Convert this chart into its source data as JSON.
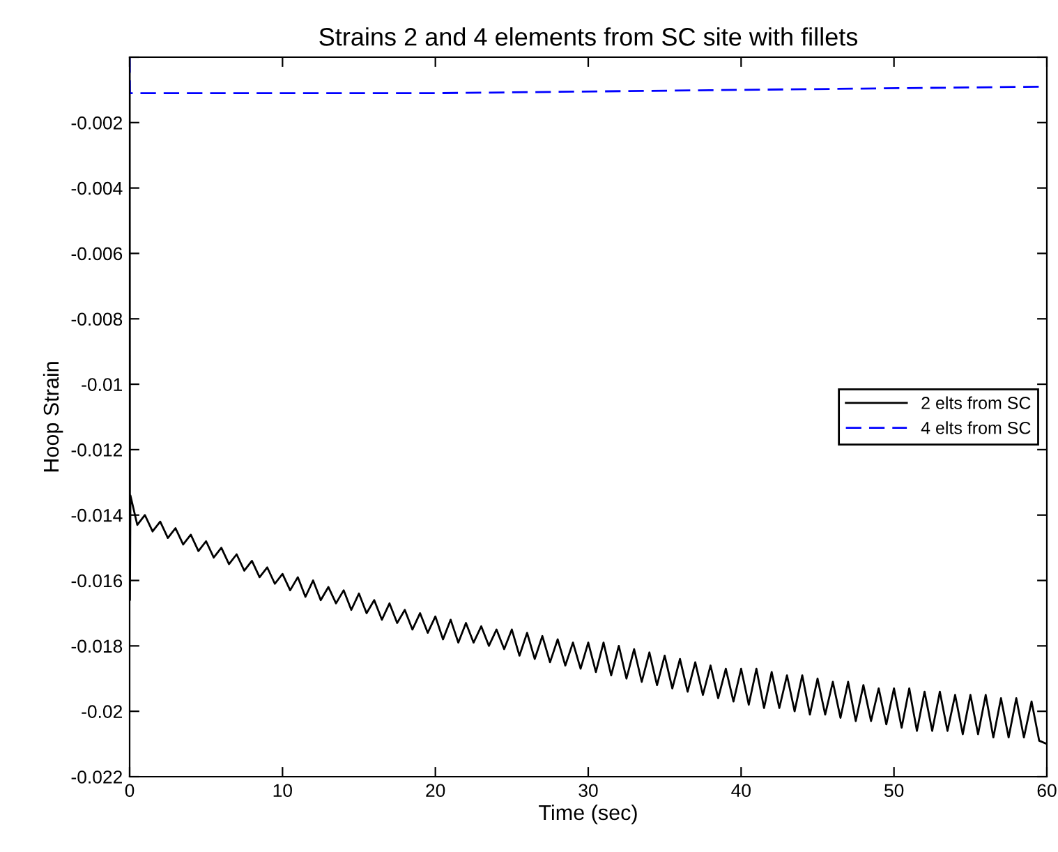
{
  "chart_data": {
    "type": "line",
    "title": "Strains 2 and 4 elements from SC site with fillets",
    "xlabel": "Time (sec)",
    "ylabel": "Hoop Strain",
    "xlim": [
      0,
      60
    ],
    "xticks": [
      0,
      10,
      20,
      30,
      40,
      50,
      60
    ],
    "ylim": [
      -0.022,
      0
    ],
    "yticks": [
      {
        "value": 0,
        "label": null
      },
      -0.002,
      -0.004,
      -0.006,
      -0.008,
      -0.01,
      -0.012,
      -0.014,
      -0.016,
      -0.018,
      -0.02,
      -0.022
    ],
    "grid": false,
    "legend": "right",
    "series": [
      {
        "name": "2 elts from SC",
        "color": "#000000",
        "line_style": "solid",
        "x": [
          0,
          0.02,
          0.05,
          0.5,
          1,
          1.5,
          2,
          2.5,
          3,
          3.5,
          4,
          4.5,
          5,
          5.5,
          6,
          6.5,
          7,
          7.5,
          8,
          8.5,
          9,
          9.5,
          10,
          10.5,
          11,
          11.5,
          12,
          12.5,
          13,
          13.5,
          14,
          14.5,
          15,
          15.5,
          16,
          16.5,
          17,
          17.5,
          18,
          18.5,
          19,
          19.5,
          20,
          20.5,
          21,
          21.5,
          22,
          22.5,
          23,
          23.5,
          24,
          24.5,
          25,
          25.5,
          26,
          26.5,
          27,
          27.5,
          28,
          28.5,
          29,
          29.5,
          30,
          30.5,
          31,
          31.5,
          32,
          32.5,
          33,
          33.5,
          34,
          34.5,
          35,
          35.5,
          36,
          36.5,
          37,
          37.5,
          38,
          38.5,
          39,
          39.5,
          40,
          40.5,
          41,
          41.5,
          42,
          42.5,
          43,
          43.5,
          44,
          44.5,
          45,
          45.5,
          46,
          46.5,
          47,
          47.5,
          48,
          48.5,
          49,
          49.5,
          50,
          50.5,
          51,
          51.5,
          52,
          52.5,
          53,
          53.5,
          54,
          54.5,
          55,
          55.5,
          56,
          56.5,
          57,
          57.5,
          58,
          58.5,
          59,
          59.5,
          60
        ],
        "values": [
          0,
          -0.0166,
          -0.0134,
          -0.0143,
          -0.014,
          -0.0145,
          -0.0142,
          -0.0147,
          -0.0144,
          -0.0149,
          -0.0146,
          -0.0151,
          -0.0148,
          -0.0153,
          -0.015,
          -0.0155,
          -0.0152,
          -0.0157,
          -0.0154,
          -0.0159,
          -0.0156,
          -0.0161,
          -0.0158,
          -0.0163,
          -0.0159,
          -0.0165,
          -0.016,
          -0.0166,
          -0.0162,
          -0.0167,
          -0.0163,
          -0.0169,
          -0.0164,
          -0.017,
          -0.0166,
          -0.0172,
          -0.0167,
          -0.0173,
          -0.0169,
          -0.0175,
          -0.017,
          -0.0176,
          -0.0171,
          -0.0178,
          -0.0172,
          -0.0179,
          -0.0173,
          -0.0179,
          -0.0174,
          -0.018,
          -0.0175,
          -0.0181,
          -0.0175,
          -0.0183,
          -0.0176,
          -0.0184,
          -0.0177,
          -0.0185,
          -0.0178,
          -0.0186,
          -0.0179,
          -0.0187,
          -0.0179,
          -0.0188,
          -0.0179,
          -0.0189,
          -0.018,
          -0.019,
          -0.0181,
          -0.0191,
          -0.0182,
          -0.0192,
          -0.0183,
          -0.0193,
          -0.0184,
          -0.0194,
          -0.0185,
          -0.0195,
          -0.0186,
          -0.0196,
          -0.0187,
          -0.0197,
          -0.0187,
          -0.0198,
          -0.0187,
          -0.0199,
          -0.0188,
          -0.0199,
          -0.0189,
          -0.02,
          -0.0189,
          -0.0201,
          -0.019,
          -0.0201,
          -0.0191,
          -0.0202,
          -0.0191,
          -0.0203,
          -0.0192,
          -0.0203,
          -0.0193,
          -0.0204,
          -0.0193,
          -0.0205,
          -0.0193,
          -0.0206,
          -0.0194,
          -0.0206,
          -0.0194,
          -0.0206,
          -0.0195,
          -0.0207,
          -0.0195,
          -0.0207,
          -0.0195,
          -0.0208,
          -0.0196,
          -0.0208,
          -0.0196,
          -0.0208,
          -0.0197,
          -0.0209,
          -0.021
        ]
      },
      {
        "name": "4 elts from SC",
        "color": "#0000ff",
        "line_style": "dashed",
        "x": [
          0,
          0.02,
          20,
          40,
          60
        ],
        "values": [
          0,
          -0.0011,
          -0.0011,
          -0.001,
          -0.0009
        ]
      }
    ]
  }
}
